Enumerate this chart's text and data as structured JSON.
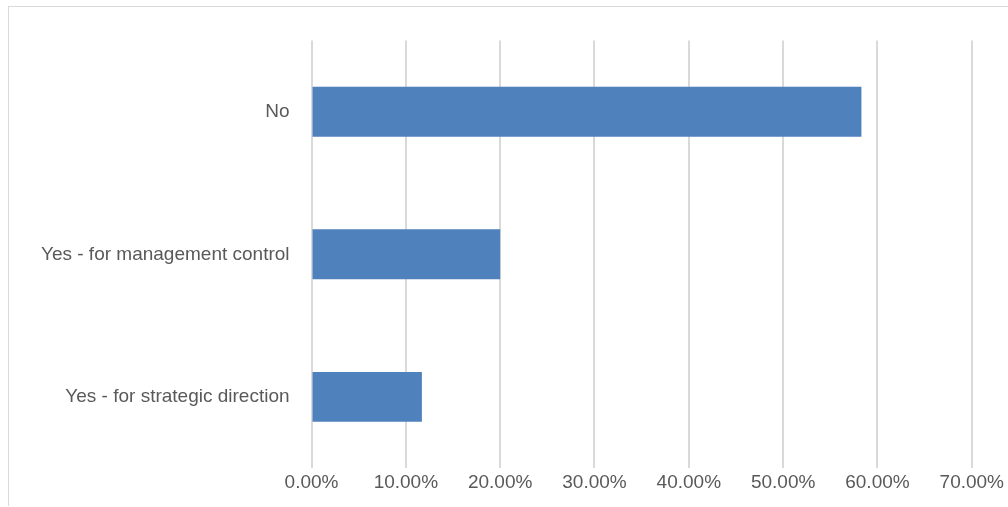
{
  "chart_data": {
    "type": "bar",
    "orientation": "horizontal",
    "categories": [
      "No",
      "Yes - for management control",
      "Yes - for strategic direction"
    ],
    "values": [
      58.3,
      20.0,
      11.7
    ],
    "color": "#4f81bd",
    "xlim": [
      0,
      70
    ],
    "xticks": [
      {
        "value": 0,
        "label": "0.00%"
      },
      {
        "value": 10,
        "label": "10.00%"
      },
      {
        "value": 20,
        "label": "20.00%"
      },
      {
        "value": 30,
        "label": "30.00%"
      },
      {
        "value": 40,
        "label": "40.00%"
      },
      {
        "value": 50,
        "label": "50.00%"
      },
      {
        "value": 60,
        "label": "60.00%"
      },
      {
        "value": 70,
        "label": "70.00%"
      }
    ],
    "grid": "x",
    "legend": false
  }
}
